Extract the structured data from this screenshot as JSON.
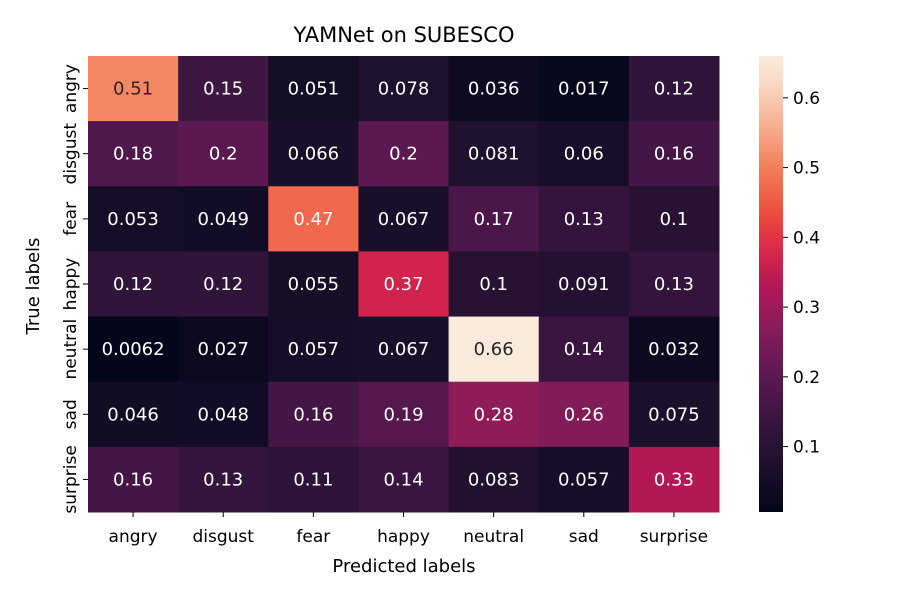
{
  "chart_data": {
    "type": "heatmap",
    "title": "YAMNet on SUBESCO",
    "xlabel": "Predicted labels",
    "ylabel": "True labels",
    "x_categories": [
      "angry",
      "disgust",
      "fear",
      "happy",
      "neutral",
      "sad",
      "surprise"
    ],
    "y_categories": [
      "angry",
      "disgust",
      "fear",
      "happy",
      "neutral",
      "sad",
      "surprise"
    ],
    "values": [
      [
        0.51,
        0.15,
        0.051,
        0.078,
        0.036,
        0.017,
        0.12
      ],
      [
        0.18,
        0.2,
        0.066,
        0.2,
        0.081,
        0.06,
        0.16
      ],
      [
        0.053,
        0.049,
        0.47,
        0.067,
        0.17,
        0.13,
        0.1
      ],
      [
        0.12,
        0.12,
        0.055,
        0.37,
        0.1,
        0.091,
        0.13
      ],
      [
        0.0062,
        0.027,
        0.057,
        0.067,
        0.66,
        0.14,
        0.032
      ],
      [
        0.046,
        0.048,
        0.16,
        0.19,
        0.28,
        0.26,
        0.075
      ],
      [
        0.16,
        0.13,
        0.11,
        0.14,
        0.083,
        0.057,
        0.33
      ]
    ],
    "value_labels": [
      [
        "0.51",
        "0.15",
        "0.051",
        "0.078",
        "0.036",
        "0.017",
        "0.12"
      ],
      [
        "0.18",
        "0.2",
        "0.066",
        "0.2",
        "0.081",
        "0.06",
        "0.16"
      ],
      [
        "0.053",
        "0.049",
        "0.47",
        "0.067",
        "0.17",
        "0.13",
        "0.1"
      ],
      [
        "0.12",
        "0.12",
        "0.055",
        "0.37",
        "0.1",
        "0.091",
        "0.13"
      ],
      [
        "0.0062",
        "0.027",
        "0.057",
        "0.067",
        "0.66",
        "0.14",
        "0.032"
      ],
      [
        "0.046",
        "0.048",
        "0.16",
        "0.19",
        "0.28",
        "0.26",
        "0.075"
      ],
      [
        "0.16",
        "0.13",
        "0.11",
        "0.14",
        "0.083",
        "0.057",
        "0.33"
      ]
    ],
    "colorbar": {
      "min": 0.0062,
      "max": 0.66,
      "ticks": [
        0.1,
        0.2,
        0.3,
        0.4,
        0.5,
        0.6
      ],
      "tick_labels": [
        "0.1",
        "0.2",
        "0.3",
        "0.4",
        "0.5",
        "0.6"
      ]
    },
    "colormap": "rocket",
    "grid": false,
    "legend": "colorbar-right"
  }
}
